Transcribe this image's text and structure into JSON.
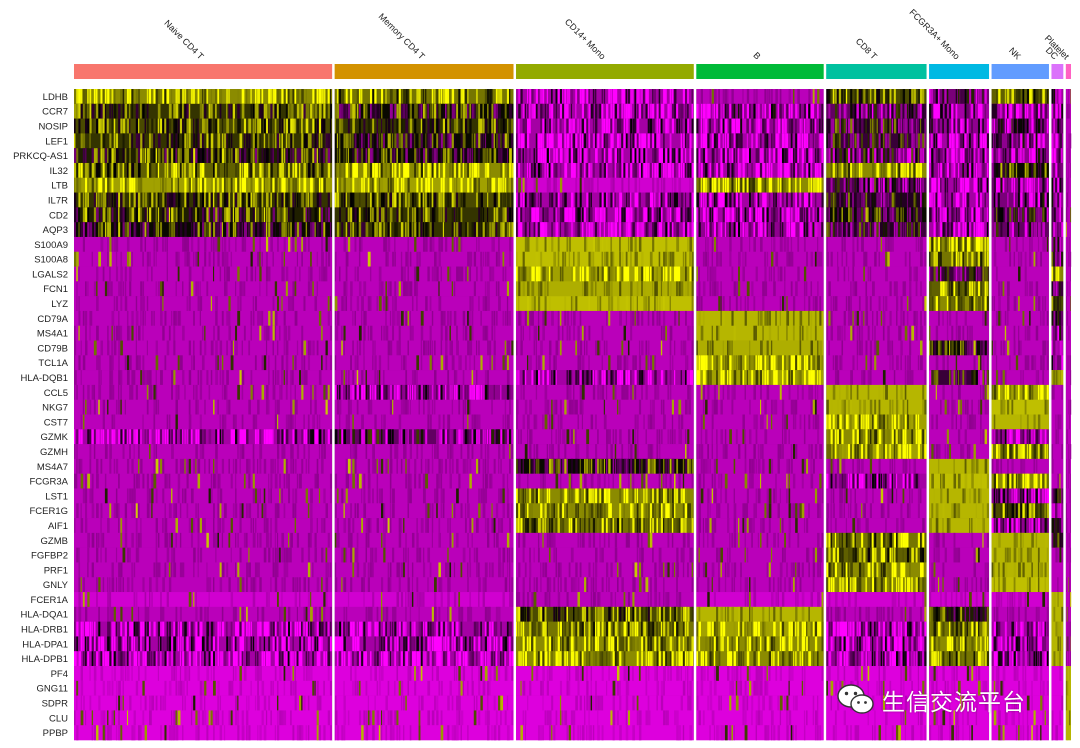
{
  "chart_data": {
    "type": "heatmap",
    "title": "",
    "colors": {
      "low": "#FF00FF",
      "mid": "#000000",
      "high": "#FFFF00",
      "background": "#5a005a"
    },
    "clusters": [
      {
        "name": "Naive CD4 T",
        "color": "#F8766D",
        "cells": 697
      },
      {
        "name": "Memory CD4 T",
        "color": "#D39200",
        "cells": 483
      },
      {
        "name": "CD14+ Mono",
        "color": "#93AA00",
        "cells": 480
      },
      {
        "name": "B",
        "color": "#00BA38",
        "cells": 344
      },
      {
        "name": "CD8 T",
        "color": "#00C19F",
        "cells": 271
      },
      {
        "name": "FCGR3A+ Mono",
        "color": "#00B9E3",
        "cells": 162
      },
      {
        "name": "NK",
        "color": "#619CFF",
        "cells": 155
      },
      {
        "name": "DC",
        "color": "#DB72FB",
        "cells": 32
      },
      {
        "name": "Platelet",
        "color": "#FF61C3",
        "cells": 14
      }
    ],
    "genes": [
      "LDHB",
      "CCR7",
      "NOSIP",
      "LEF1",
      "PRKCQ-AS1",
      "IL32",
      "LTB",
      "IL7R",
      "CD2",
      "AQP3",
      "S100A9",
      "S100A8",
      "LGALS2",
      "FCN1",
      "LYZ",
      "CD79A",
      "MS4A1",
      "CD79B",
      "TCL1A",
      "HLA-DQB1",
      "CCL5",
      "NKG7",
      "CST7",
      "GZMK",
      "GZMH",
      "MS4A7",
      "FCGR3A",
      "LST1",
      "FCER1G",
      "AIF1",
      "GZMB",
      "FGFBP2",
      "PRF1",
      "GNLY",
      "FCER1A",
      "HLA-DQA1",
      "HLA-DRB1",
      "HLA-DPA1",
      "HLA-DPB1",
      "PF4",
      "GNG11",
      "SDPR",
      "CLU",
      "PPBP"
    ],
    "expression_level": [
      [
        0.85,
        0.8,
        0.15,
        0.1,
        0.7,
        0.25,
        0.75,
        0.3,
        0.1
      ],
      [
        0.65,
        0.55,
        0.15,
        0.2,
        0.3,
        0.15,
        0.15,
        0.2,
        0.1
      ],
      [
        0.7,
        0.65,
        0.15,
        0.2,
        0.45,
        0.2,
        0.25,
        0.2,
        0.1
      ],
      [
        0.65,
        0.55,
        0.15,
        0.15,
        0.4,
        0.15,
        0.2,
        0.15,
        0.1
      ],
      [
        0.6,
        0.55,
        0.15,
        0.15,
        0.35,
        0.15,
        0.2,
        0.15,
        0.1
      ],
      [
        0.75,
        0.85,
        0.15,
        0.15,
        0.85,
        0.2,
        0.55,
        0.15,
        0.1
      ],
      [
        0.9,
        0.9,
        0.05,
        0.85,
        0.35,
        0.15,
        0.2,
        0.2,
        0.1
      ],
      [
        0.65,
        0.7,
        0.15,
        0.15,
        0.45,
        0.15,
        0.25,
        0.2,
        0.1
      ],
      [
        0.6,
        0.65,
        0.15,
        0.15,
        0.55,
        0.15,
        0.4,
        0.15,
        0.1
      ],
      [
        0.55,
        0.65,
        0.15,
        0.2,
        0.45,
        0.15,
        0.3,
        0.15,
        0.1
      ],
      [
        0.1,
        0.1,
        0.97,
        0.1,
        0.1,
        0.85,
        0.1,
        0.4,
        0.1
      ],
      [
        0.1,
        0.1,
        0.97,
        0.1,
        0.1,
        0.8,
        0.1,
        0.4,
        0.1
      ],
      [
        0.1,
        0.1,
        0.9,
        0.1,
        0.1,
        0.4,
        0.1,
        0.85,
        0.1
      ],
      [
        0.1,
        0.1,
        0.93,
        0.1,
        0.1,
        0.75,
        0.1,
        0.4,
        0.1
      ],
      [
        0.1,
        0.1,
        0.97,
        0.1,
        0.1,
        0.85,
        0.1,
        0.7,
        0.1
      ],
      [
        0.1,
        0.1,
        0.1,
        0.95,
        0.1,
        0.1,
        0.1,
        0.3,
        0.1
      ],
      [
        0.1,
        0.1,
        0.1,
        0.95,
        0.1,
        0.1,
        0.1,
        0.25,
        0.1
      ],
      [
        0.1,
        0.1,
        0.1,
        0.93,
        0.1,
        0.55,
        0.1,
        0.25,
        0.1
      ],
      [
        0.1,
        0.1,
        0.1,
        0.9,
        0.1,
        0.1,
        0.1,
        0.2,
        0.1
      ],
      [
        0.1,
        0.1,
        0.15,
        0.9,
        0.1,
        0.4,
        0.1,
        0.95,
        0.1
      ],
      [
        0.1,
        0.2,
        0.1,
        0.1,
        0.95,
        0.1,
        0.9,
        0.1,
        0.1
      ],
      [
        0.1,
        0.1,
        0.1,
        0.1,
        0.95,
        0.1,
        0.97,
        0.1,
        0.1
      ],
      [
        0.1,
        0.1,
        0.1,
        0.1,
        0.9,
        0.1,
        0.95,
        0.1,
        0.1
      ],
      [
        0.15,
        0.3,
        0.1,
        0.1,
        0.85,
        0.1,
        0.2,
        0.1,
        0.1
      ],
      [
        0.1,
        0.1,
        0.1,
        0.1,
        0.9,
        0.1,
        0.8,
        0.1,
        0.1
      ],
      [
        0.1,
        0.1,
        0.55,
        0.1,
        0.1,
        0.95,
        0.1,
        0.1,
        0.1
      ],
      [
        0.1,
        0.1,
        0.1,
        0.1,
        0.15,
        0.97,
        0.85,
        0.1,
        0.1
      ],
      [
        0.1,
        0.1,
        0.85,
        0.1,
        0.1,
        0.95,
        0.2,
        0.4,
        0.1
      ],
      [
        0.1,
        0.1,
        0.85,
        0.1,
        0.1,
        0.95,
        0.7,
        0.4,
        0.1
      ],
      [
        0.1,
        0.1,
        0.8,
        0.1,
        0.1,
        0.95,
        0.2,
        0.4,
        0.1
      ],
      [
        0.1,
        0.1,
        0.1,
        0.1,
        0.8,
        0.1,
        0.95,
        0.6,
        0.1
      ],
      [
        0.1,
        0.1,
        0.1,
        0.1,
        0.75,
        0.1,
        0.95,
        0.1,
        0.1
      ],
      [
        0.1,
        0.1,
        0.1,
        0.1,
        0.85,
        0.1,
        0.95,
        0.1,
        0.1
      ],
      [
        0.1,
        0.1,
        0.1,
        0.1,
        0.85,
        0.1,
        0.97,
        0.1,
        0.1
      ],
      [
        0.05,
        0.05,
        0.1,
        0.05,
        0.05,
        0.05,
        0.05,
        0.95,
        0.1
      ],
      [
        0.1,
        0.1,
        0.7,
        0.95,
        0.1,
        0.6,
        0.1,
        0.95,
        0.1
      ],
      [
        0.15,
        0.15,
        0.8,
        0.9,
        0.15,
        0.8,
        0.15,
        0.95,
        0.1
      ],
      [
        0.15,
        0.15,
        0.85,
        0.85,
        0.2,
        0.85,
        0.15,
        0.95,
        0.1
      ],
      [
        0.15,
        0.15,
        0.85,
        0.85,
        0.2,
        0.8,
        0.2,
        0.95,
        0.1
      ],
      [
        0.02,
        0.02,
        0.02,
        0.02,
        0.02,
        0.02,
        0.02,
        0.02,
        0.95
      ],
      [
        0.02,
        0.02,
        0.02,
        0.02,
        0.02,
        0.02,
        0.02,
        0.02,
        0.95
      ],
      [
        0.02,
        0.02,
        0.02,
        0.02,
        0.02,
        0.02,
        0.02,
        0.02,
        0.95
      ],
      [
        0.02,
        0.02,
        0.02,
        0.02,
        0.02,
        0.02,
        0.02,
        0.02,
        0.95
      ],
      [
        0.02,
        0.02,
        0.02,
        0.02,
        0.02,
        0.02,
        0.02,
        0.02,
        0.95
      ]
    ]
  },
  "watermark": {
    "text": "生信交流平台",
    "icon": "wechat-icon"
  }
}
